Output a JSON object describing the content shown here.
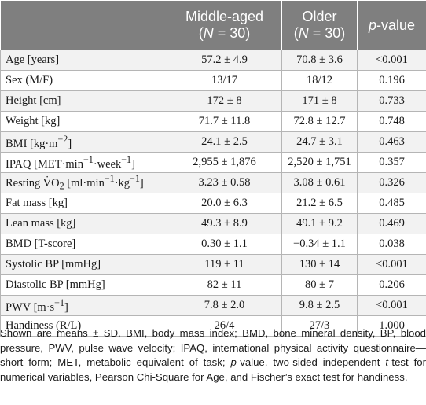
{
  "header": {
    "col0": "",
    "col1_line1": "Middle-aged",
    "col1_line2_open": "(",
    "col1_line2_n": "N",
    "col1_line2_rest": " = 30)",
    "col2_line1": "Older",
    "col2_line2_open": "(",
    "col2_line2_n": "N",
    "col2_line2_rest": " = 30)",
    "col3_p": "p",
    "col3_rest": "-value"
  },
  "rows": [
    {
      "label_html": "Age [years]",
      "middle": "57.2 ± 4.9",
      "older": "70.8 ± 3.6",
      "p": "<0.001"
    },
    {
      "label_html": "Sex (M/F)",
      "middle": "13/17",
      "older": "18/12",
      "p": "0.196"
    },
    {
      "label_html": "Height [cm]",
      "middle": "172 ± 8",
      "older": "171 ± 8",
      "p": "0.733"
    },
    {
      "label_html": "Weight [kg]",
      "middle": "71.7 ± 11.8",
      "older": "72.8 ± 12.7",
      "p": "0.748"
    },
    {
      "label_html": "BMI [kg·m<sup>−2</sup>]",
      "middle": "24.1 ± 2.5",
      "older": "24.7 ± 3.1",
      "p": "0.463"
    },
    {
      "label_html": "IPAQ [MET·min<sup>−1</sup>·week<sup>−1</sup>]",
      "middle": "2,955 ± 1,876",
      "older": "2,520 ± 1,751",
      "p": "0.357"
    },
    {
      "label_html": "Resting V̇O<sub>2</sub> [ml·min<sup>−1</sup>·kg<sup>−1</sup>]",
      "middle": "3.23 ± 0.58",
      "older": "3.08 ± 0.61",
      "p": "0.326"
    },
    {
      "label_html": "Fat mass [kg]",
      "middle": "20.0 ± 6.3",
      "older": "21.2 ± 6.5",
      "p": "0.485"
    },
    {
      "label_html": "Lean mass [kg]",
      "middle": "49.3 ± 8.9",
      "older": "49.1 ± 9.2",
      "p": "0.469"
    },
    {
      "label_html": "BMD [T-score]",
      "middle": "0.30 ± 1.1",
      "older": "−0.34 ± 1.1",
      "p": "0.038"
    },
    {
      "label_html": "Systolic BP [mmHg]",
      "middle": "119 ± 11",
      "older": "130 ± 14",
      "p": "<0.001"
    },
    {
      "label_html": "Diastolic BP [mmHg]",
      "middle": "82 ± 11",
      "older": "80 ± 7",
      "p": "0.206"
    },
    {
      "label_html": "PWV [m·s<sup>−1</sup>]",
      "middle": "7.8 ± 2.0",
      "older": "9.8 ± 2.5",
      "p": "<0.001"
    },
    {
      "label_html": "Handiness (R/L)",
      "middle": "26/4",
      "older": "27/3",
      "p": "1.000"
    }
  ],
  "footnote_html": "Shown are means ± SD. BMI, body mass index; BMD, bone mineral density, BP, blood pressure, PWV, pulse wave velocity; IPAQ, international physical activity questionnaire—short form; MET, metabolic equivalent of task; <i>p</i>-value, two-sided independent <i>t</i>-test for numerical variables, Pearson Chi-Square for Age, and Fischer’s exact test for handiness.",
  "colors": {
    "header_bg": "#7f7f7f",
    "header_text": "#ffffff",
    "alt_row_bg": "#f2f2f2",
    "border": "#b5b5b5"
  }
}
